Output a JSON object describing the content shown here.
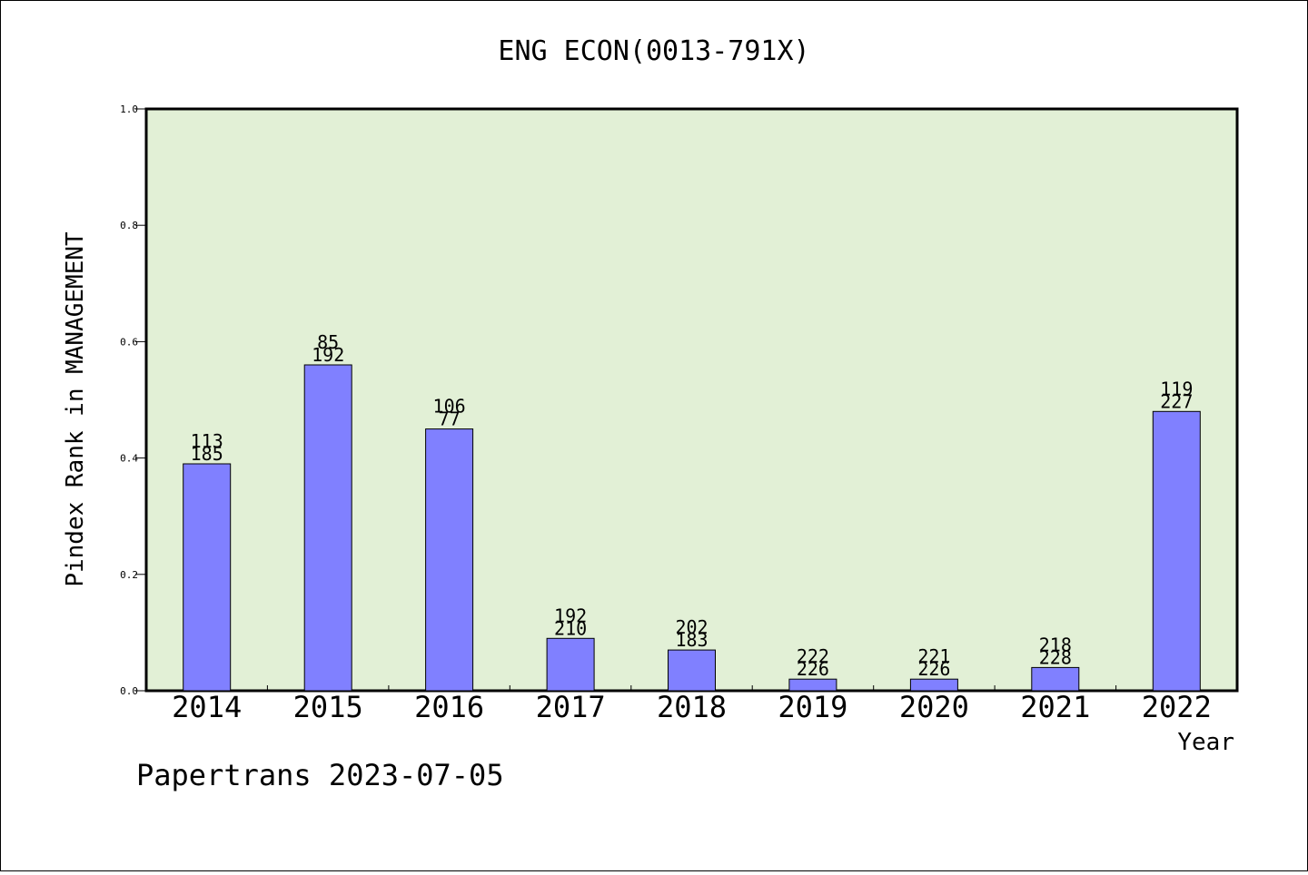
{
  "chart_data": {
    "type": "bar",
    "title": "ENG ECON(0013-791X)",
    "xlabel": "Year",
    "ylabel": "Pindex Rank in MANAGEMENT",
    "ylim": [
      0,
      1.0
    ],
    "yticks": [
      "0.0",
      "0.2",
      "0.4",
      "0.6",
      "0.8",
      "1.0"
    ],
    "ytick_values": [
      0,
      0.2,
      0.4,
      0.6,
      0.8,
      1.0
    ],
    "categories": [
      "2014",
      "2015",
      "2016",
      "2017",
      "2018",
      "2019",
      "2020",
      "2021",
      "2022"
    ],
    "values": [
      0.39,
      0.56,
      0.45,
      0.09,
      0.07,
      0.02,
      0.02,
      0.04,
      0.48
    ],
    "labels_top": [
      "113",
      "85",
      "106",
      "192",
      "202",
      "222",
      "221",
      "218",
      "119"
    ],
    "labels_bottom": [
      "185",
      "192",
      "77",
      "210",
      "183",
      "226",
      "226",
      "228",
      "227"
    ],
    "grid": false,
    "colors": {
      "bar": "#8080ff",
      "plot_background": "#e2f0d6",
      "axes": "#000000"
    }
  },
  "footer": {
    "text": "Papertrans 2023-07-05"
  }
}
